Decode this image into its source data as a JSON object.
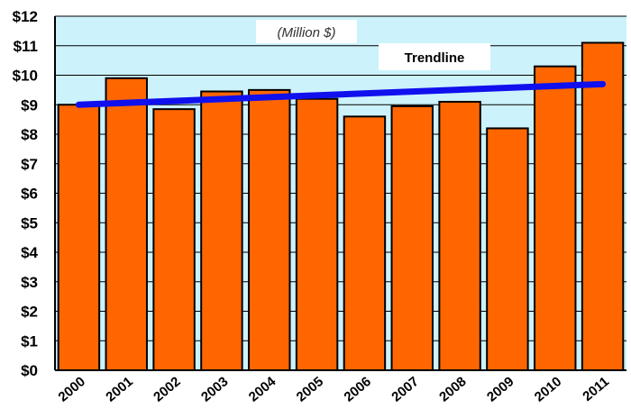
{
  "chart_data": {
    "type": "bar",
    "categories": [
      "2000",
      "2001",
      "2002",
      "2003",
      "2004",
      "2005",
      "2006",
      "2007",
      "2008",
      "2009",
      "2010",
      "2011"
    ],
    "values": [
      9.0,
      9.9,
      8.85,
      9.45,
      9.5,
      9.2,
      8.6,
      8.95,
      9.1,
      8.2,
      10.3,
      11.1
    ],
    "ylim": [
      0,
      12
    ],
    "yticks": [
      "$0",
      "$1",
      "$2",
      "$3",
      "$4",
      "$5",
      "$6",
      "$7",
      "$8",
      "$9",
      "$10",
      "$11",
      "$12"
    ],
    "unit_label": "(Million $)",
    "trendline": {
      "label": "Trendline",
      "start": 9.0,
      "end": 9.7
    },
    "grid": true,
    "colors": {
      "bar": "#ff6600",
      "plot_bg": "#ccf2fb",
      "trendline": "#1010ee",
      "gridline": "#000000"
    }
  }
}
